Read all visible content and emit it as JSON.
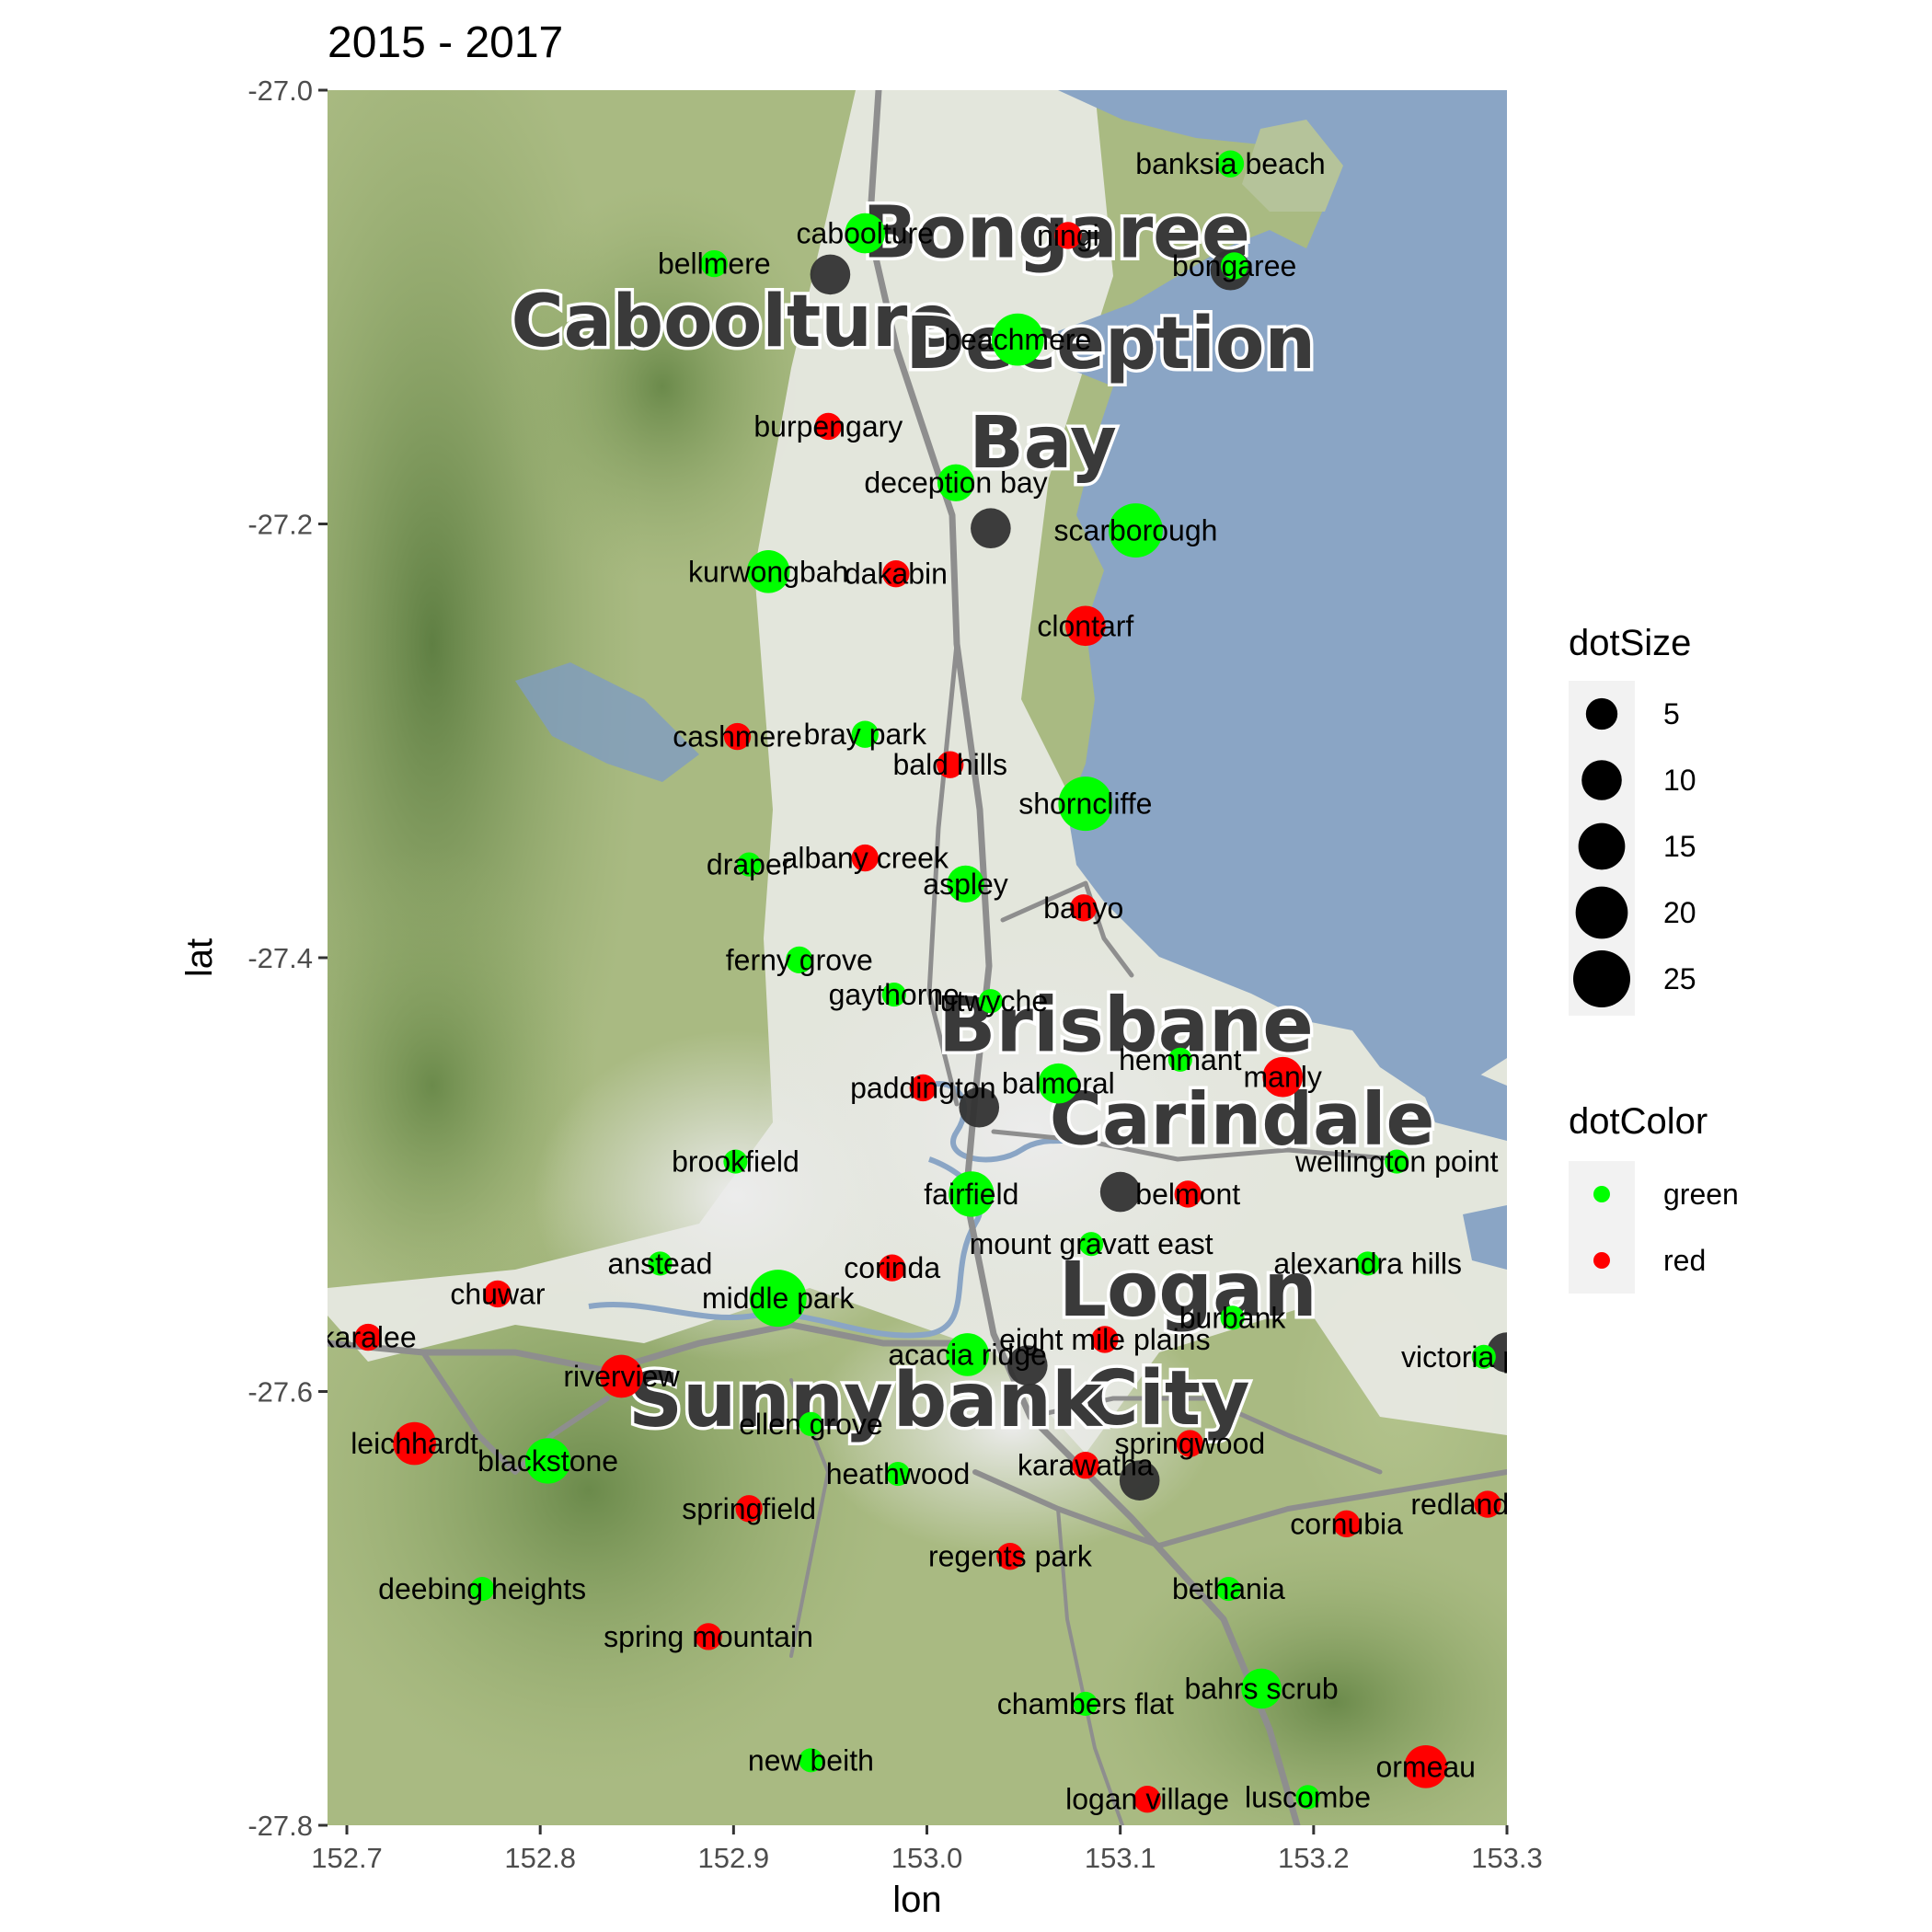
{
  "figure": {
    "title": "2015 - 2017",
    "xlabel": "lon",
    "ylabel": "lat"
  },
  "basemap_labels": [
    {
      "text": "Bongaree",
      "lon": 153.067,
      "lat": -27.077
    },
    {
      "text": "Caboolture",
      "lon": 152.9,
      "lat": -27.118
    },
    {
      "text": "Deception",
      "lon": 153.095,
      "lat": -27.128
    },
    {
      "text": "Bay",
      "lon": 153.06,
      "lat": -27.174
    },
    {
      "text": "Brisbane",
      "lon": 153.103,
      "lat": -27.443
    },
    {
      "text": "Carindale",
      "lon": 153.163,
      "lat": -27.486
    },
    {
      "text": "Logan",
      "lon": 153.135,
      "lat": -27.565
    },
    {
      "text": "City",
      "lon": 153.124,
      "lat": -27.615
    },
    {
      "text": "Sunnybank",
      "lon": 152.968,
      "lat": -27.616
    }
  ],
  "chart_data": {
    "type": "scatter",
    "title": "2015 - 2017",
    "xlabel": "lon",
    "ylabel": "lat",
    "xlim": [
      152.69,
      153.3
    ],
    "ylim": [
      -27.8,
      -27.0
    ],
    "xticks": [
      152.7,
      152.8,
      152.9,
      153.0,
      153.1,
      153.2,
      153.3
    ],
    "xtick_labels": [
      "152.7",
      "152.8",
      "152.9",
      "153.0",
      "153.1",
      "153.2",
      "153.3"
    ],
    "yticks": [
      -27.0,
      -27.2,
      -27.4,
      -27.6,
      -27.8
    ],
    "ytick_labels": [
      "-27.0",
      "-27.2",
      "-27.4",
      "-27.6",
      "-27.8"
    ],
    "grid": false,
    "legend_placement": "right",
    "colors": {
      "green": "#00ff00",
      "red": "#ff0000",
      "gray": "#333333"
    },
    "points": [
      {
        "name": "banksia beach",
        "lon": 153.157,
        "lat": -27.034,
        "size": 3,
        "color": "green"
      },
      {
        "name": "caboolture",
        "lon": 152.968,
        "lat": -27.066,
        "size": 10,
        "color": "green"
      },
      {
        "name": "ningi",
        "lon": 153.073,
        "lat": -27.067,
        "size": 3,
        "color": "red"
      },
      {
        "name": "bellmere",
        "lon": 152.89,
        "lat": -27.08,
        "size": 3,
        "color": "green"
      },
      {
        "name": "bongaree",
        "lon": 153.159,
        "lat": -27.081,
        "size": 3,
        "color": "green"
      },
      {
        "name": "beachmere",
        "lon": 153.047,
        "lat": -27.115,
        "size": 20,
        "color": "green"
      },
      {
        "name": "burpengary",
        "lon": 152.949,
        "lat": -27.155,
        "size": 3,
        "color": "red"
      },
      {
        "name": "deception bay",
        "lon": 153.015,
        "lat": -27.181,
        "size": 8,
        "color": "green"
      },
      {
        "name": "scarborough",
        "lon": 153.108,
        "lat": -27.203,
        "size": 22,
        "color": "green"
      },
      {
        "name": "kurwongbah",
        "lon": 152.918,
        "lat": -27.222,
        "size": 12,
        "color": "green"
      },
      {
        "name": "dakabin",
        "lon": 152.984,
        "lat": -27.223,
        "size": 3,
        "color": "red"
      },
      {
        "name": "clontarf",
        "lon": 153.082,
        "lat": -27.247,
        "size": 10,
        "color": "red"
      },
      {
        "name": "cashmere",
        "lon": 152.902,
        "lat": -27.298,
        "size": 3,
        "color": "red"
      },
      {
        "name": "bray park",
        "lon": 152.968,
        "lat": -27.297,
        "size": 3,
        "color": "green"
      },
      {
        "name": "bald hills",
        "lon": 153.012,
        "lat": -27.311,
        "size": 3,
        "color": "red"
      },
      {
        "name": "shorncliffe",
        "lon": 153.082,
        "lat": -27.329,
        "size": 22,
        "color": "green"
      },
      {
        "name": "draper",
        "lon": 152.908,
        "lat": -27.357,
        "size": 2,
        "color": "green"
      },
      {
        "name": "albany creek",
        "lon": 152.968,
        "lat": -27.354,
        "size": 3,
        "color": "red"
      },
      {
        "name": "aspley",
        "lon": 153.02,
        "lat": -27.366,
        "size": 8,
        "color": "green"
      },
      {
        "name": "banyo",
        "lon": 153.081,
        "lat": -27.377,
        "size": 3,
        "color": "red"
      },
      {
        "name": "ferny grove",
        "lon": 152.934,
        "lat": -27.401,
        "size": 3,
        "color": "green"
      },
      {
        "name": "gaythorne",
        "lon": 152.983,
        "lat": -27.417,
        "size": 2,
        "color": "green"
      },
      {
        "name": "lutwyche",
        "lon": 153.033,
        "lat": -27.42,
        "size": 2,
        "color": "green"
      },
      {
        "name": "hemmant",
        "lon": 153.131,
        "lat": -27.447,
        "size": 2,
        "color": "green"
      },
      {
        "name": "manly",
        "lon": 153.184,
        "lat": -27.455,
        "size": 10,
        "color": "red"
      },
      {
        "name": "paddington",
        "lon": 152.998,
        "lat": -27.46,
        "size": 3,
        "color": "red"
      },
      {
        "name": "balmoral",
        "lon": 153.068,
        "lat": -27.458,
        "size": 10,
        "color": "green"
      },
      {
        "name": "brookfield",
        "lon": 152.901,
        "lat": -27.494,
        "size": 2,
        "color": "green"
      },
      {
        "name": "wellington point",
        "lon": 153.243,
        "lat": -27.494,
        "size": 2,
        "color": "green"
      },
      {
        "name": "fairfield",
        "lon": 153.023,
        "lat": -27.509,
        "size": 14,
        "color": "green"
      },
      {
        "name": "belmont",
        "lon": 153.135,
        "lat": -27.509,
        "size": 3,
        "color": "red"
      },
      {
        "name": "mount gravatt east",
        "lon": 153.085,
        "lat": -27.532,
        "size": 2,
        "color": "green"
      },
      {
        "name": "anstead",
        "lon": 152.862,
        "lat": -27.541,
        "size": 2,
        "color": "green"
      },
      {
        "name": "alexandra hills",
        "lon": 153.228,
        "lat": -27.541,
        "size": 2,
        "color": "green"
      },
      {
        "name": "corinda",
        "lon": 152.982,
        "lat": -27.543,
        "size": 3,
        "color": "red"
      },
      {
        "name": "chuwar",
        "lon": 152.778,
        "lat": -27.555,
        "size": 3,
        "color": "red"
      },
      {
        "name": "middle park",
        "lon": 152.923,
        "lat": -27.557,
        "size": 25,
        "color": "green"
      },
      {
        "name": "burbank",
        "lon": 153.158,
        "lat": -27.566,
        "size": 2,
        "color": "green"
      },
      {
        "name": "karalee",
        "lon": 152.711,
        "lat": -27.575,
        "size": 3,
        "color": "red"
      },
      {
        "name": "eight mile plains",
        "lon": 153.092,
        "lat": -27.576,
        "size": 3,
        "color": "red"
      },
      {
        "name": "acacia ridge",
        "lon": 153.021,
        "lat": -27.583,
        "size": 12,
        "color": "green"
      },
      {
        "name": "victoria point",
        "lon": 153.288,
        "lat": -27.584,
        "size": 2,
        "color": "green"
      },
      {
        "name": "riverview",
        "lon": 152.842,
        "lat": -27.593,
        "size": 12,
        "color": "red"
      },
      {
        "name": "ellen grove",
        "lon": 152.94,
        "lat": -27.615,
        "size": 2,
        "color": "green"
      },
      {
        "name": "leichhardt",
        "lon": 152.735,
        "lat": -27.624,
        "size": 12,
        "color": "red"
      },
      {
        "name": "springwood",
        "lon": 153.136,
        "lat": -27.624,
        "size": 3,
        "color": "red"
      },
      {
        "name": "blackstone",
        "lon": 152.804,
        "lat": -27.632,
        "size": 14,
        "color": "green"
      },
      {
        "name": "karawatha",
        "lon": 153.082,
        "lat": -27.634,
        "size": 3,
        "color": "red"
      },
      {
        "name": "heathwood",
        "lon": 152.985,
        "lat": -27.638,
        "size": 2,
        "color": "green"
      },
      {
        "name": "springfield",
        "lon": 152.908,
        "lat": -27.654,
        "size": 3,
        "color": "red"
      },
      {
        "name": "redland bay",
        "lon": 153.29,
        "lat": -27.652,
        "size": 3,
        "color": "red"
      },
      {
        "name": "cornubia",
        "lon": 153.217,
        "lat": -27.661,
        "size": 3,
        "color": "red"
      },
      {
        "name": "regents park",
        "lon": 153.043,
        "lat": -27.676,
        "size": 3,
        "color": "red"
      },
      {
        "name": "deebing heights",
        "lon": 152.77,
        "lat": -27.691,
        "size": 2,
        "color": "green"
      },
      {
        "name": "bethania",
        "lon": 153.156,
        "lat": -27.691,
        "size": 2,
        "color": "green"
      },
      {
        "name": "spring mountain",
        "lon": 152.887,
        "lat": -27.713,
        "size": 3,
        "color": "red"
      },
      {
        "name": "bahrs scrub",
        "lon": 153.173,
        "lat": -27.737,
        "size": 10,
        "color": "green"
      },
      {
        "name": "chambers flat",
        "lon": 153.082,
        "lat": -27.744,
        "size": 2,
        "color": "green"
      },
      {
        "name": "new beith",
        "lon": 152.94,
        "lat": -27.77,
        "size": 2,
        "color": "green"
      },
      {
        "name": "ormeau",
        "lon": 153.258,
        "lat": -27.773,
        "size": 12,
        "color": "red"
      },
      {
        "name": "logan village",
        "lon": 153.114,
        "lat": -27.788,
        "size": 3,
        "color": "red"
      },
      {
        "name": "luscombe",
        "lon": 153.197,
        "lat": -27.787,
        "size": 2,
        "color": "green"
      },
      {
        "lon": 152.95,
        "lat": -27.085,
        "size": 10,
        "color": "gray"
      },
      {
        "lon": 153.157,
        "lat": -27.083,
        "size": 10,
        "color": "gray"
      },
      {
        "lon": 153.033,
        "lat": -27.202,
        "size": 10,
        "color": "gray"
      },
      {
        "lon": 153.027,
        "lat": -27.469,
        "size": 10,
        "color": "gray"
      },
      {
        "lon": 153.1,
        "lat": -27.508,
        "size": 10,
        "color": "gray"
      },
      {
        "lon": 153.052,
        "lat": -27.588,
        "size": 10,
        "color": "gray"
      },
      {
        "lon": 153.11,
        "lat": -27.641,
        "size": 10,
        "color": "gray"
      },
      {
        "lon": 153.3,
        "lat": -27.582,
        "size": 10,
        "color": "gray"
      }
    ],
    "legends": {
      "size": {
        "title": "dotSize",
        "values": [
          5,
          10,
          15,
          20,
          25
        ],
        "labels": [
          "5",
          "10",
          "15",
          "20",
          "25"
        ]
      },
      "color": {
        "title": "dotColor",
        "items": [
          {
            "label": "green",
            "color": "#00ff00"
          },
          {
            "label": "red",
            "color": "#ff0000"
          }
        ]
      }
    }
  }
}
